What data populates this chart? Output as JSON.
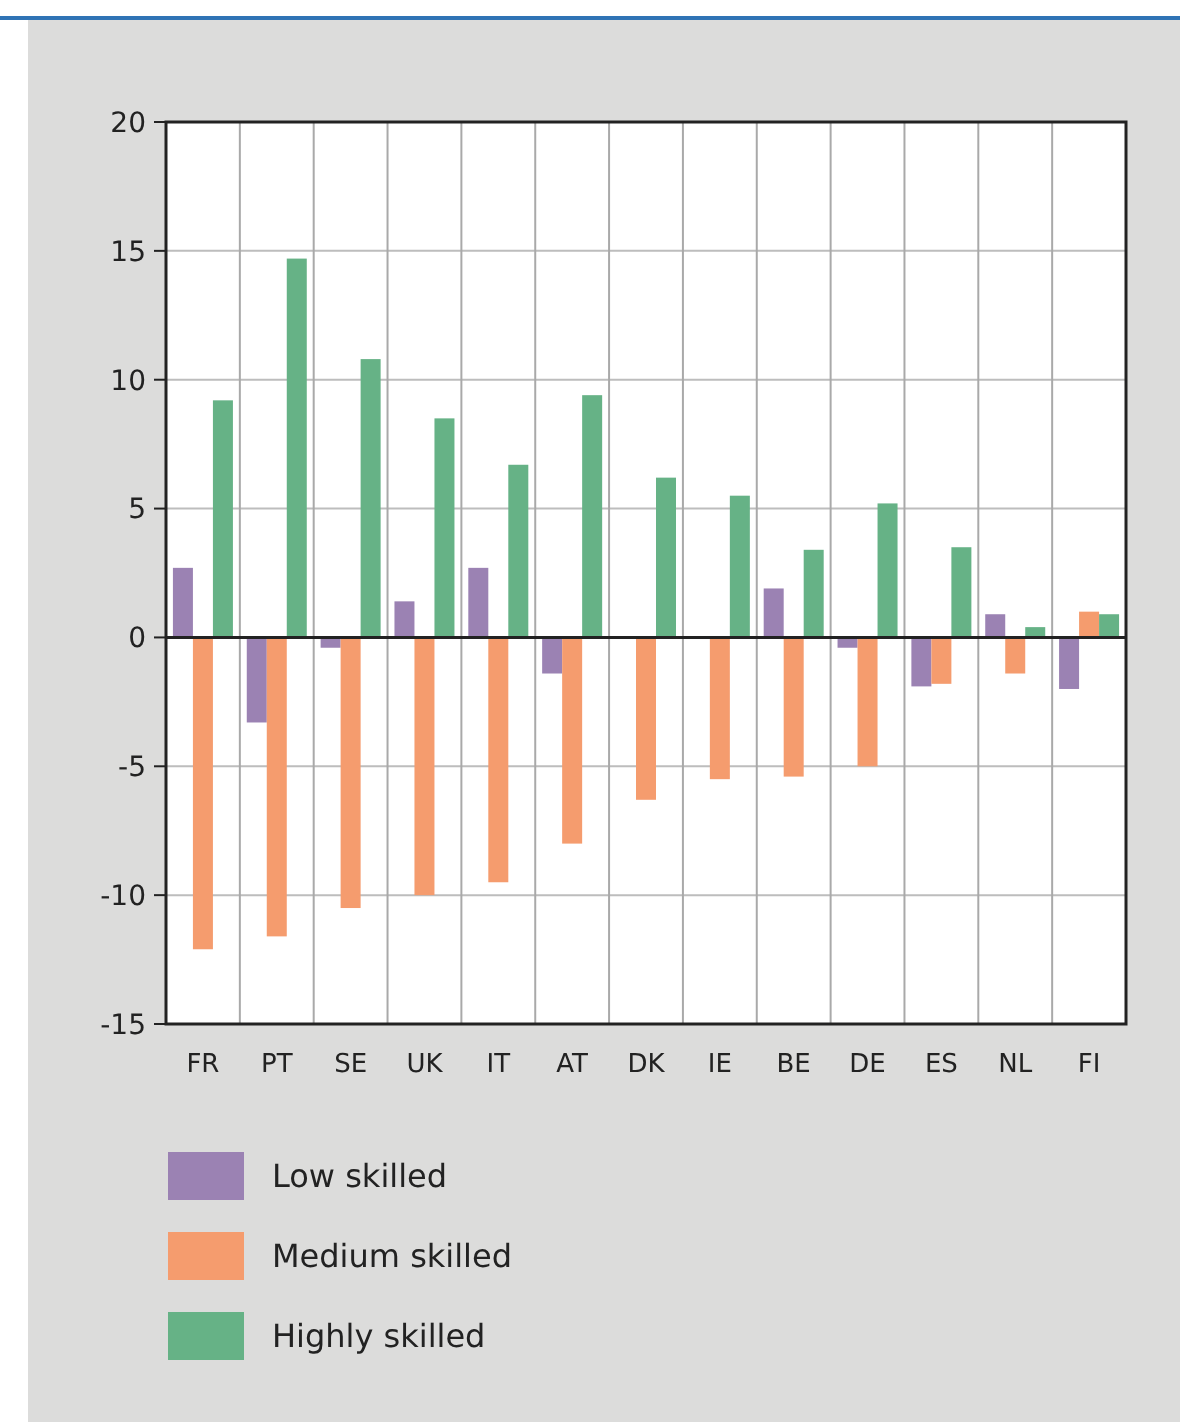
{
  "chart_data": {
    "type": "bar",
    "categories": [
      "FR",
      "PT",
      "SE",
      "UK",
      "IT",
      "AT",
      "DK",
      "IE",
      "BE",
      "DE",
      "ES",
      "NL",
      "FI"
    ],
    "series": [
      {
        "name": "Low skilled",
        "color": "#9b82b3",
        "values": [
          2.7,
          -3.3,
          -0.4,
          1.4,
          2.7,
          -1.4,
          null,
          null,
          1.9,
          -0.4,
          -1.9,
          0.9,
          -2.0
        ]
      },
      {
        "name": "Medium skilled",
        "color": "#f59c6e",
        "values": [
          -12.1,
          -11.6,
          -10.5,
          -10.0,
          -9.5,
          -8.0,
          -6.3,
          -5.5,
          -5.4,
          -5.0,
          -1.8,
          -1.4,
          1.0
        ]
      },
      {
        "name": "Highly skilled",
        "color": "#66b286",
        "values": [
          9.2,
          14.7,
          10.8,
          8.5,
          6.7,
          9.4,
          6.2,
          5.5,
          3.4,
          5.2,
          3.5,
          0.4,
          0.9
        ]
      }
    ],
    "ylim": [
      -15,
      20
    ],
    "yticks": [
      -15,
      -10,
      -5,
      0,
      5,
      10,
      15,
      20
    ],
    "grid": true,
    "legend": "bottom"
  }
}
